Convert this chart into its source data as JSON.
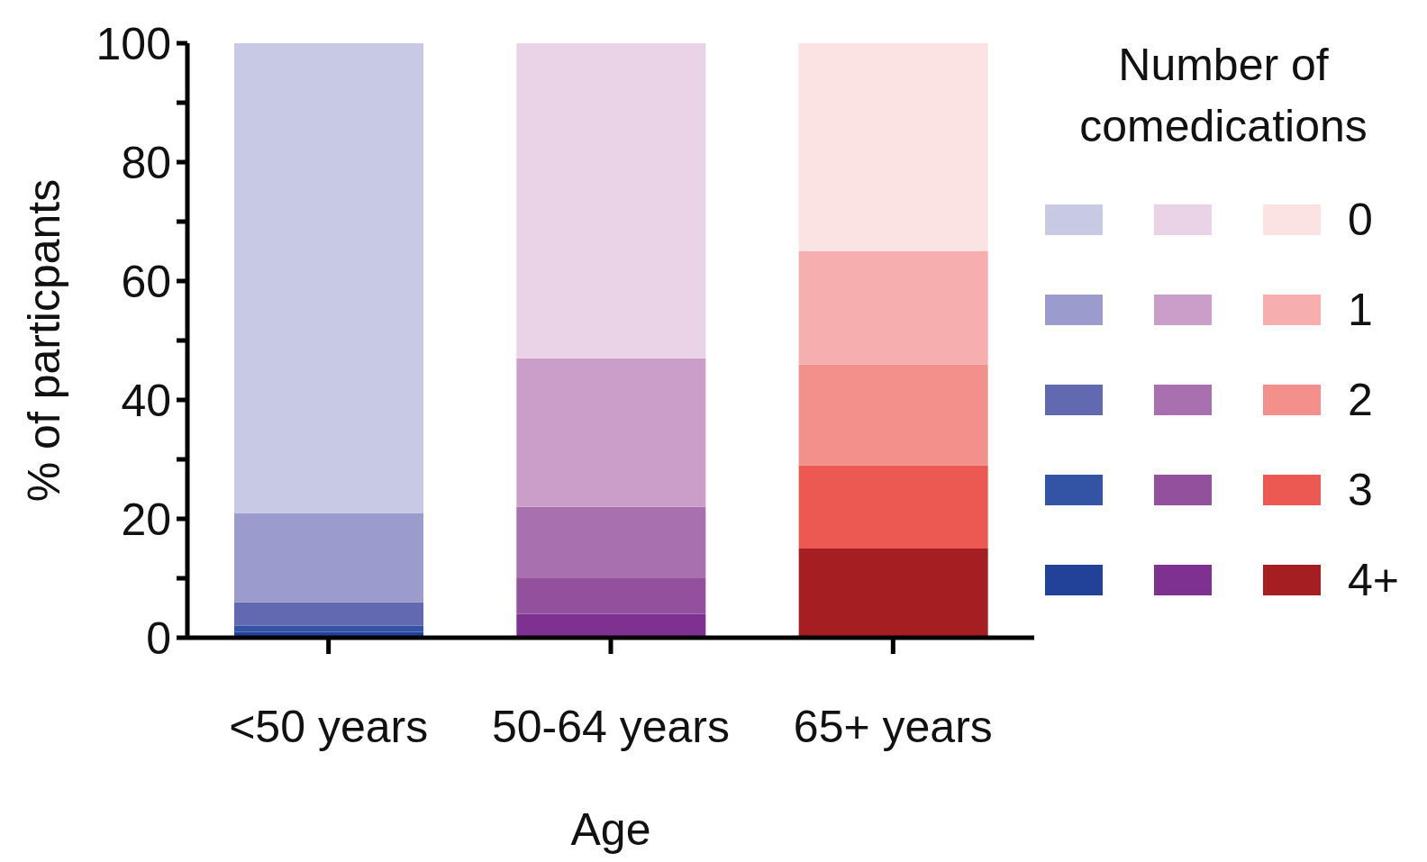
{
  "chart_data": {
    "type": "bar",
    "stacked": true,
    "xlabel": "Age",
    "ylabel": "% of particpants",
    "legend_title": "Number of comedications",
    "legend": "right",
    "grid": false,
    "categories": [
      "<50 years",
      "50-64 years",
      "65+ years"
    ],
    "ylim": [
      0,
      100
    ],
    "yticks": [
      0,
      {
        "value": 10,
        "label": null
      },
      20,
      {
        "value": 30,
        "label": null
      },
      40,
      {
        "value": 50,
        "label": null
      },
      60,
      {
        "value": 70,
        "label": null
      },
      80,
      {
        "value": 90,
        "label": null
      },
      100
    ],
    "series": [
      {
        "name": "4+",
        "colors": [
          "#22429a",
          "#7e3190",
          "#a51e22"
        ],
        "values": [
          1,
          4,
          15
        ]
      },
      {
        "name": "3",
        "colors": [
          "#3353a5",
          "#92509d",
          "#ec5952"
        ],
        "values": [
          1,
          6,
          14
        ]
      },
      {
        "name": "2",
        "colors": [
          "#6369b1",
          "#a970b0",
          "#f4908c"
        ],
        "values": [
          4,
          12,
          17
        ]
      },
      {
        "name": "1",
        "colors": [
          "#9b9bcd",
          "#cb9ec9",
          "#f7aeae"
        ],
        "values": [
          15,
          25,
          19
        ]
      },
      {
        "name": "0",
        "colors": [
          "#c8c9e5",
          "#ead3e6",
          "#fbe3e4"
        ],
        "values": [
          79,
          53,
          35
        ]
      }
    ]
  }
}
